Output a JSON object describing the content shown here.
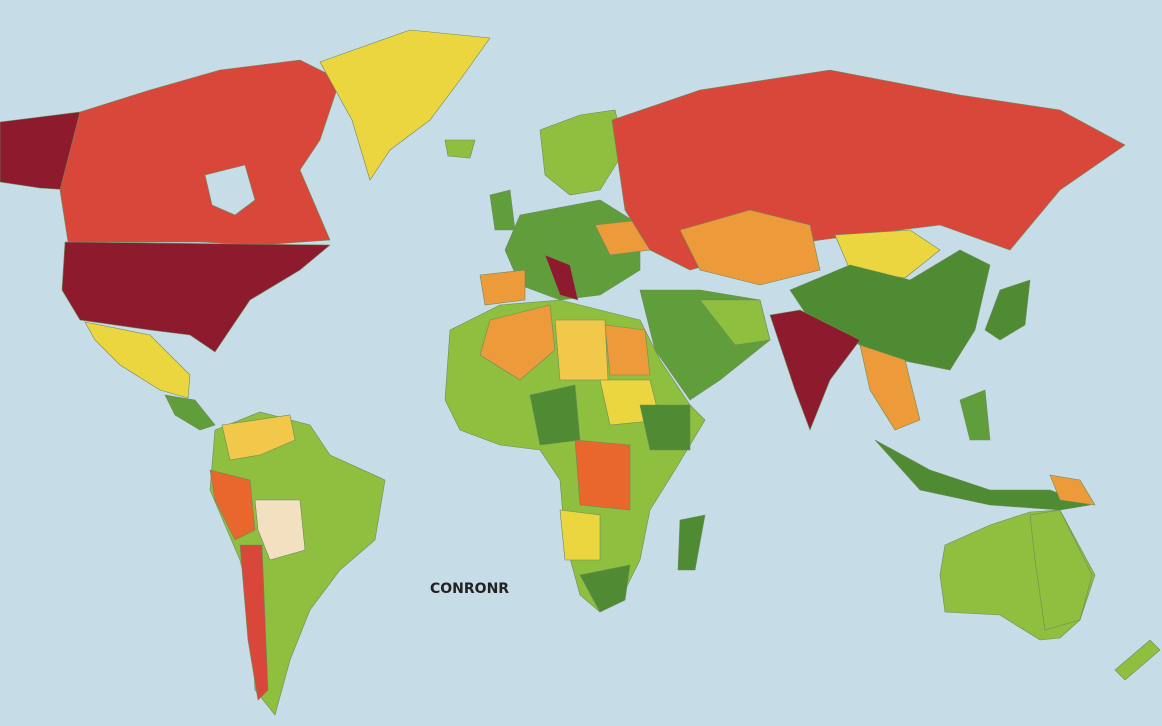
{
  "map": {
    "label": "CONRONR"
  }
}
